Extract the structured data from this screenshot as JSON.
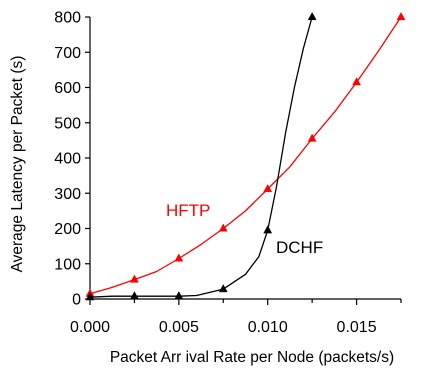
{
  "chart_data": {
    "type": "line",
    "xlabel": "Packet Arr ival Rate per Node (packets/s)",
    "ylabel": "Average Latency per Packet (s)",
    "xlim": [
      0,
      0.0175
    ],
    "ylim": [
      0,
      800
    ],
    "x_ticks": [
      "0.000",
      "0.005",
      "0.010",
      "0.015"
    ],
    "y_ticks": [
      "0",
      "100",
      "200",
      "300",
      "400",
      "500",
      "600",
      "700",
      "800"
    ],
    "grid": false,
    "legend": "none",
    "series": [
      {
        "name": "HFTP",
        "color": "#ff0000",
        "marker": "triangle",
        "label_position": "left of curve, mid-height",
        "curve": [
          {
            "x": 0.0,
            "y": 15
          },
          {
            "x": 0.00125,
            "y": 33
          },
          {
            "x": 0.0025,
            "y": 55
          },
          {
            "x": 0.00375,
            "y": 78
          },
          {
            "x": 0.005,
            "y": 115
          },
          {
            "x": 0.00625,
            "y": 155
          },
          {
            "x": 0.0075,
            "y": 200
          },
          {
            "x": 0.00875,
            "y": 250
          },
          {
            "x": 0.01,
            "y": 312
          },
          {
            "x": 0.01125,
            "y": 375
          },
          {
            "x": 0.0125,
            "y": 455
          },
          {
            "x": 0.01375,
            "y": 530
          },
          {
            "x": 0.015,
            "y": 615
          },
          {
            "x": 0.01625,
            "y": 705
          },
          {
            "x": 0.0175,
            "y": 800
          }
        ],
        "points": [
          {
            "x": 0.0,
            "y": 15
          },
          {
            "x": 0.0025,
            "y": 55
          },
          {
            "x": 0.005,
            "y": 115
          },
          {
            "x": 0.0075,
            "y": 200
          },
          {
            "x": 0.01,
            "y": 312
          },
          {
            "x": 0.0125,
            "y": 455
          },
          {
            "x": 0.015,
            "y": 615
          },
          {
            "x": 0.0175,
            "y": 800
          }
        ]
      },
      {
        "name": "DCHF",
        "color": "#000000",
        "marker": "triangle",
        "label_position": "right of curve, lower",
        "curve": [
          {
            "x": 0.0,
            "y": 5
          },
          {
            "x": 0.00125,
            "y": 8
          },
          {
            "x": 0.0025,
            "y": 8
          },
          {
            "x": 0.005,
            "y": 8
          },
          {
            "x": 0.006,
            "y": 10
          },
          {
            "x": 0.0075,
            "y": 28
          },
          {
            "x": 0.00875,
            "y": 70
          },
          {
            "x": 0.0095,
            "y": 120
          },
          {
            "x": 0.01,
            "y": 195
          },
          {
            "x": 0.0105,
            "y": 320
          },
          {
            "x": 0.011,
            "y": 470
          },
          {
            "x": 0.0115,
            "y": 600
          },
          {
            "x": 0.012,
            "y": 710
          },
          {
            "x": 0.0125,
            "y": 800
          }
        ],
        "points": [
          {
            "x": 0.0,
            "y": 5
          },
          {
            "x": 0.0025,
            "y": 8
          },
          {
            "x": 0.005,
            "y": 8
          },
          {
            "x": 0.0075,
            "y": 28
          },
          {
            "x": 0.01,
            "y": 195
          },
          {
            "x": 0.0125,
            "y": 800
          }
        ]
      }
    ]
  }
}
